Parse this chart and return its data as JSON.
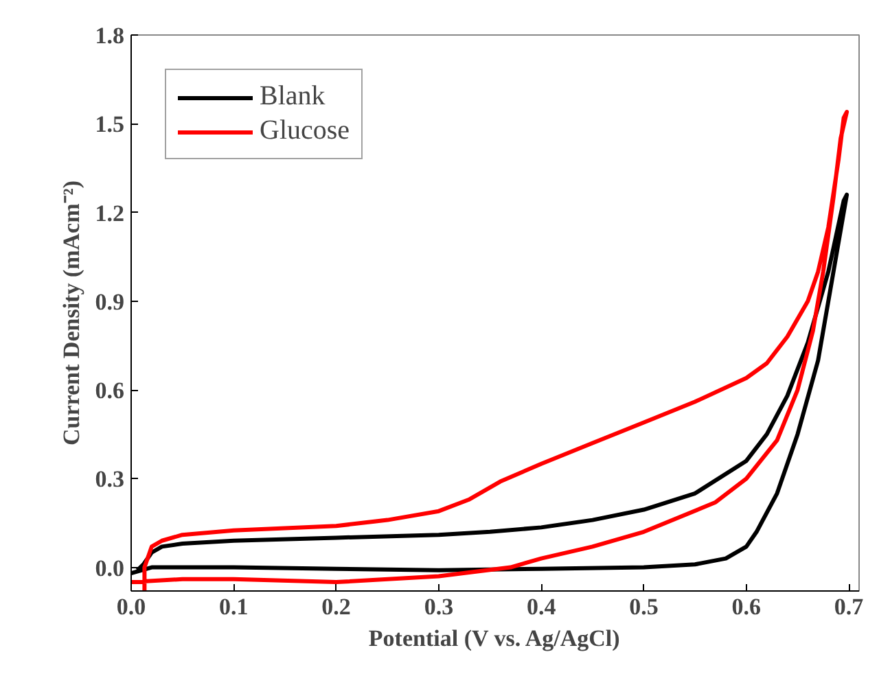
{
  "chart_data": {
    "type": "line",
    "xlabel": "Potential (V vs. Ag/AgCl)",
    "ylabel": "Current Density (mAcm⁻²)",
    "xlim": [
      0,
      0.71
    ],
    "ylim": [
      -0.08,
      1.8
    ],
    "xticks": [
      {
        "value": 0,
        "label": "0.0"
      },
      0.1,
      0.2,
      0.3,
      0.4,
      0.5,
      0.6,
      0.7
    ],
    "yticks": [
      {
        "value": 0,
        "label": "0.0"
      },
      0.3,
      0.6,
      0.9,
      1.2,
      1.5,
      1.8
    ],
    "grid": false,
    "legend": "top left",
    "marker": "none",
    "line_style": "solid",
    "series": [
      {
        "name": "Blank",
        "color": "#000000",
        "x": [
          0.006,
          0.012,
          0.02,
          0.03,
          0.05,
          0.1,
          0.2,
          0.3,
          0.35,
          0.4,
          0.45,
          0.5,
          0.55,
          0.6,
          0.62,
          0.64,
          0.66,
          0.68,
          0.695,
          0.698,
          0.695,
          0.685,
          0.67,
          0.65,
          0.63,
          0.61,
          0.6,
          0.58,
          0.55,
          0.5,
          0.4,
          0.3,
          0.2,
          0.1,
          0.05,
          0.02,
          0.0
        ],
        "values": [
          -0.01,
          0.01,
          0.05,
          0.07,
          0.08,
          0.09,
          0.1,
          0.11,
          0.12,
          0.135,
          0.16,
          0.195,
          0.25,
          0.36,
          0.45,
          0.58,
          0.76,
          1.0,
          1.24,
          1.26,
          1.2,
          1.0,
          0.7,
          0.45,
          0.25,
          0.12,
          0.07,
          0.03,
          0.01,
          0.0,
          -0.005,
          -0.01,
          -0.005,
          0.0,
          0.0,
          0.0,
          -0.02
        ]
      },
      {
        "name": "Glucose",
        "color": "#ff0000",
        "x": [
          0.013,
          0.013,
          0.02,
          0.03,
          0.05,
          0.1,
          0.2,
          0.25,
          0.3,
          0.33,
          0.36,
          0.4,
          0.45,
          0.5,
          0.55,
          0.6,
          0.62,
          0.64,
          0.66,
          0.67,
          0.68,
          0.69,
          0.695,
          0.698,
          0.692,
          0.685,
          0.675,
          0.665,
          0.65,
          0.63,
          0.6,
          0.57,
          0.5,
          0.45,
          0.4,
          0.37,
          0.3,
          0.2,
          0.1,
          0.05,
          0.0
        ],
        "values": [
          -0.08,
          0.0,
          0.07,
          0.09,
          0.11,
          0.125,
          0.14,
          0.16,
          0.19,
          0.23,
          0.29,
          0.35,
          0.42,
          0.49,
          0.56,
          0.64,
          0.69,
          0.78,
          0.9,
          1.0,
          1.15,
          1.38,
          1.52,
          1.54,
          1.45,
          1.25,
          1.0,
          0.8,
          0.6,
          0.43,
          0.3,
          0.22,
          0.12,
          0.07,
          0.03,
          0.0,
          -0.03,
          -0.05,
          -0.04,
          -0.04,
          -0.05
        ]
      }
    ]
  }
}
